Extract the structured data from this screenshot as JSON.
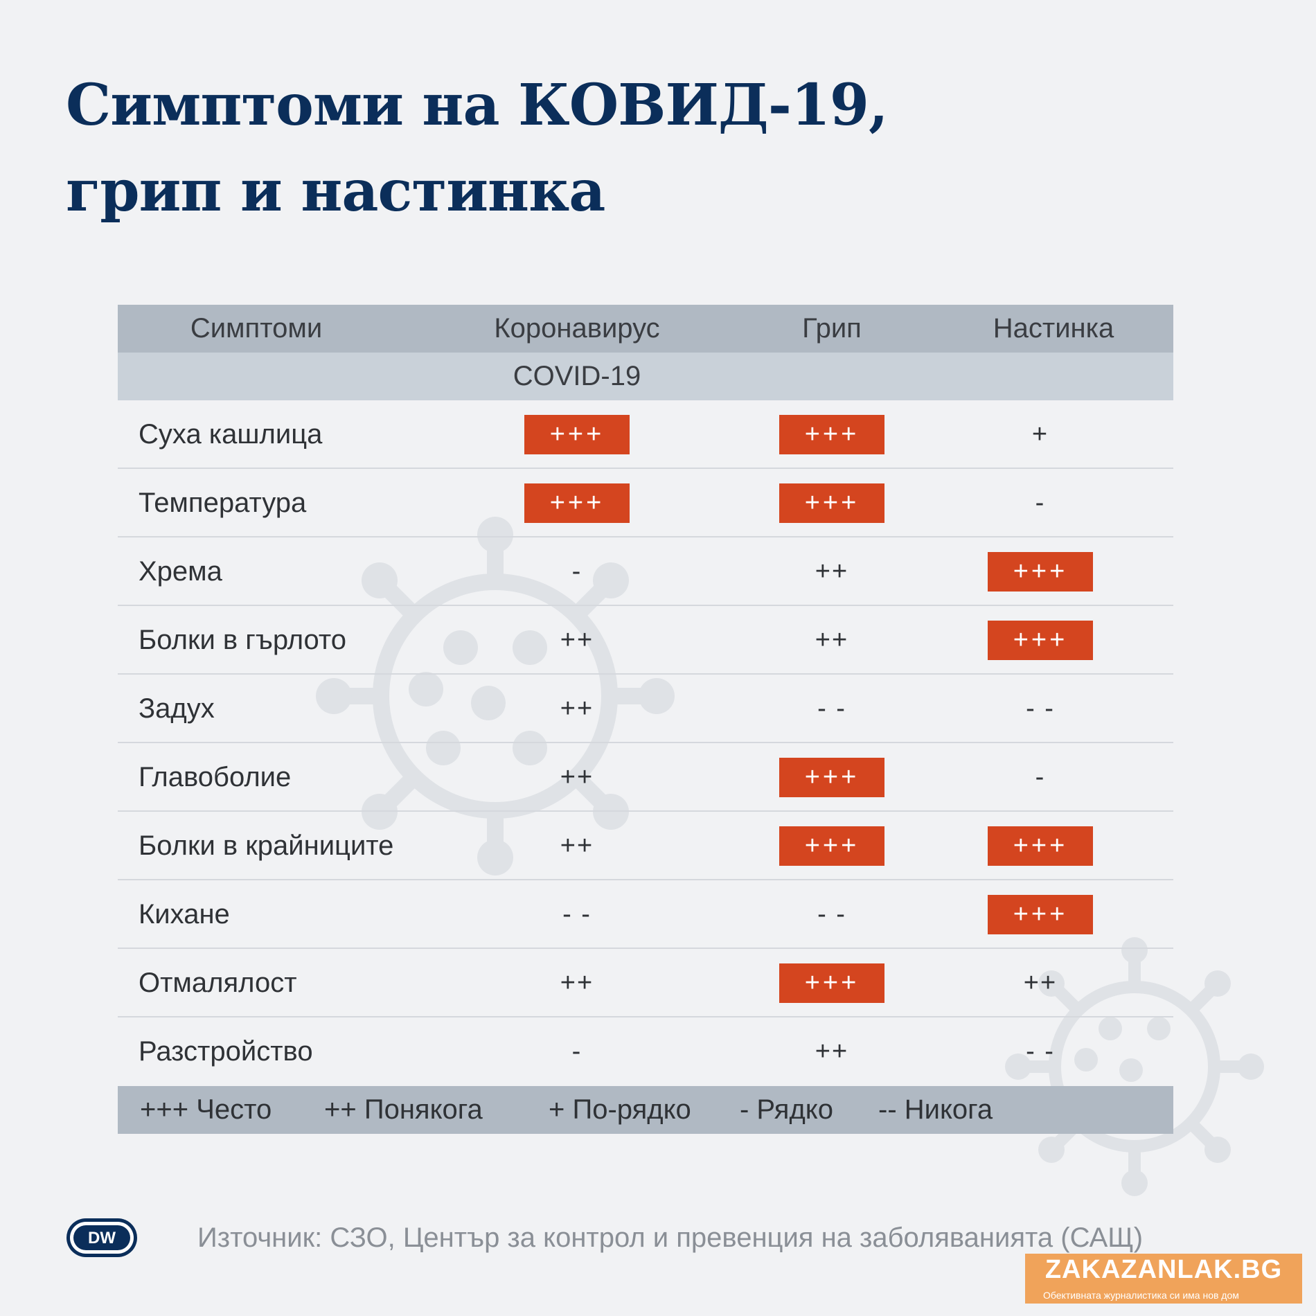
{
  "title": {
    "line1": "Симптоми на КОВИД-19,",
    "line2": "грип и настинка"
  },
  "table": {
    "headers": {
      "symptoms": "Симптоми",
      "coronavirus": "Коронавирус",
      "covid": "COVID-19",
      "flu": "Грип",
      "cold": "Настинка"
    },
    "rows": [
      {
        "symptom": "Суха кашлица",
        "covid": "+++",
        "flu": "+++",
        "cold": "+"
      },
      {
        "symptom": "Температура",
        "covid": "+++",
        "flu": "+++",
        "cold": "-"
      },
      {
        "symptom": "Хрема",
        "covid": "-",
        "flu": "++",
        "cold": "+++"
      },
      {
        "symptom": "Болки в гърлото",
        "covid": "++",
        "flu": "++",
        "cold": "+++"
      },
      {
        "symptom": "Задух",
        "covid": "++",
        "flu": "- -",
        "cold": "- -"
      },
      {
        "symptom": "Главоболие",
        "covid": "++",
        "flu": "+++",
        "cold": "-"
      },
      {
        "symptom": "Болки в крайниците",
        "covid": "++",
        "flu": "+++",
        "cold": "+++"
      },
      {
        "symptom": "Кихане",
        "covid": "- -",
        "flu": "- -",
        "cold": "+++"
      },
      {
        "symptom": "Отмалялост",
        "covid": "++",
        "flu": "+++",
        "cold": "++"
      },
      {
        "symptom": "Разстройство",
        "covid": "-",
        "flu": "++",
        "cold": "- -"
      }
    ]
  },
  "legend": {
    "often": "+++ Често",
    "sometimes": "++ Понякога",
    "less_often": "+ По-рядко",
    "rarely": "- Рядко",
    "never": "-- Никога"
  },
  "footer": {
    "logo_text": "DW",
    "source": "Източник: СЗО, Център за контрол и превенция на заболяванията (САЩ)"
  },
  "brand": {
    "name": "ZAKAZANLAK.BG",
    "tagline": "Обективната журналистика си има нов дом"
  },
  "colors": {
    "title": "#0b2e5a",
    "highlight": "#d4451f",
    "header_dark": "#b0b9c3",
    "header_light": "#c9d1d9",
    "background": "#f1f2f4",
    "brand": "#f0a35a"
  },
  "icons": [
    "virus-icon",
    "dw-logo-icon"
  ]
}
